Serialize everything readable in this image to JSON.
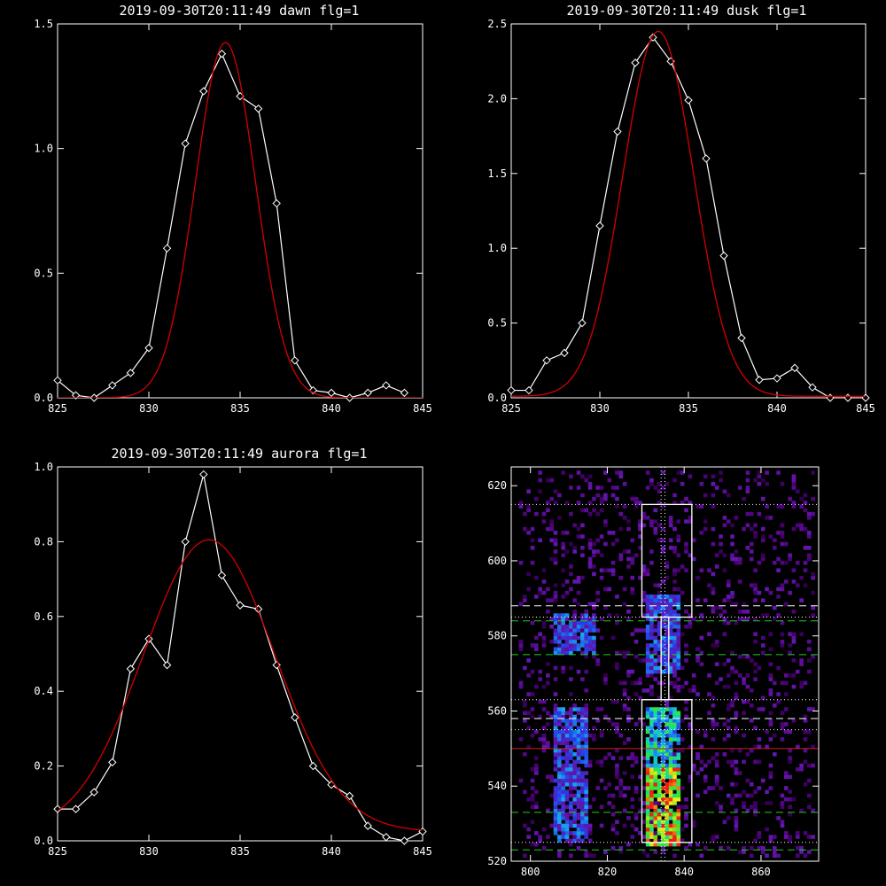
{
  "colors": {
    "background": "#000000",
    "axes": "#ffffff",
    "data_line": "#ffffff",
    "fit_line": "#d40000",
    "guide_green": "#22cc22",
    "guide_red": "#cc2222",
    "guide_white": "#ffffff"
  },
  "chart_data": [
    {
      "type": "line",
      "title": "2019-09-30T20:11:49 dawn flg=1",
      "xlim": [
        825,
        845
      ],
      "ylim": [
        0,
        1.5
      ],
      "xticks": [
        "825",
        "830",
        "835",
        "840",
        "845"
      ],
      "yticks": [
        "0.0",
        "0.5",
        "1.0",
        "1.5"
      ],
      "series": [
        {
          "style": "white-diamonds",
          "x": [
            825,
            826,
            827,
            828,
            829,
            830,
            831,
            832,
            833,
            834,
            835,
            836,
            837,
            838,
            839,
            840,
            841,
            842,
            843,
            844
          ],
          "y": [
            0.07,
            0.01,
            0.0,
            0.05,
            0.1,
            0.2,
            0.6,
            1.02,
            1.23,
            1.38,
            1.21,
            1.16,
            0.78,
            0.15,
            0.03,
            0.02,
            0.0,
            0.02,
            0.05,
            0.02
          ]
        },
        {
          "style": "red-fit",
          "gauss": {
            "amp": 1.425,
            "center": 834.2,
            "sigma": 1.65,
            "base": 0.0
          }
        }
      ]
    },
    {
      "type": "line",
      "title": "2019-09-30T20:11:49 dusk flg=1",
      "xlim": [
        825,
        845
      ],
      "ylim": [
        0,
        2.5
      ],
      "xticks": [
        "825",
        "830",
        "835",
        "840",
        "845"
      ],
      "yticks": [
        "0.0",
        "0.5",
        "1.0",
        "1.5",
        "2.0",
        "2.5"
      ],
      "series": [
        {
          "style": "white-diamonds",
          "x": [
            825,
            826,
            827,
            828,
            829,
            830,
            831,
            832,
            833,
            834,
            835,
            836,
            837,
            838,
            839,
            840,
            841,
            842,
            843,
            844,
            845
          ],
          "y": [
            0.05,
            0.05,
            0.25,
            0.3,
            0.5,
            1.15,
            1.78,
            2.24,
            2.41,
            2.25,
            1.99,
            1.6,
            0.95,
            0.4,
            0.12,
            0.13,
            0.2,
            0.07,
            0.0,
            0.0,
            0.0
          ]
        },
        {
          "style": "red-fit",
          "gauss": {
            "amp": 2.44,
            "center": 833.3,
            "sigma": 2.0,
            "base": 0.01
          }
        }
      ]
    },
    {
      "type": "line",
      "title": "2019-09-30T20:11:49 aurora flg=1",
      "xlim": [
        825,
        845
      ],
      "ylim": [
        0,
        1.0
      ],
      "xticks": [
        "825",
        "830",
        "835",
        "840",
        "845"
      ],
      "yticks": [
        "0.0",
        "0.2",
        "0.4",
        "0.6",
        "0.8",
        "1.0"
      ],
      "series": [
        {
          "style": "white-diamonds",
          "x": [
            825,
            826,
            827,
            828,
            829,
            830,
            831,
            832,
            833,
            834,
            835,
            836,
            837,
            838,
            839,
            840,
            841,
            842,
            843,
            844,
            845
          ],
          "y": [
            0.085,
            0.085,
            0.13,
            0.21,
            0.46,
            0.54,
            0.47,
            0.8,
            0.98,
            0.71,
            0.63,
            0.62,
            0.47,
            0.33,
            0.2,
            0.15,
            0.12,
            0.04,
            0.01,
            0.0,
            0.025
          ]
        },
        {
          "style": "red-fit",
          "gauss": {
            "amp": 0.78,
            "center": 833.3,
            "sigma": 3.6,
            "base": 0.025
          }
        }
      ]
    },
    {
      "type": "heatmap",
      "title": "",
      "xlim": [
        795,
        875
      ],
      "ylim": [
        520,
        625
      ],
      "xticks": [
        "800",
        "820",
        "840",
        "860"
      ],
      "yticks": [
        "520",
        "540",
        "560",
        "580",
        "600",
        "620"
      ],
      "colormap": "rainbow (black-purple-blue-cyan-green-yellow-red)",
      "bright_regions": [
        {
          "x": [
            830,
            838
          ],
          "y": [
            524,
            560
          ],
          "level": "high"
        },
        {
          "x": [
            806,
            814
          ],
          "y": [
            525,
            560
          ],
          "level": "medium"
        },
        {
          "x": [
            806,
            816
          ],
          "y": [
            575,
            585
          ],
          "level": "medium"
        },
        {
          "x": [
            830,
            838
          ],
          "y": [
            570,
            590
          ],
          "level": "medium"
        }
      ],
      "boxes": [
        {
          "x": [
            829,
            842
          ],
          "y": [
            525,
            563
          ]
        },
        {
          "x": [
            829,
            842
          ],
          "y": [
            585,
            615
          ]
        },
        {
          "x": [
            834,
            836
          ],
          "y": [
            563,
            585
          ]
        }
      ],
      "hlines": [
        {
          "y": 615,
          "color": "white",
          "style": "dotted"
        },
        {
          "y": 588,
          "color": "white",
          "style": "dashed"
        },
        {
          "y": 585,
          "color": "white",
          "style": "dotted"
        },
        {
          "y": 584,
          "color": "green",
          "style": "dashed"
        },
        {
          "y": 575,
          "color": "green",
          "style": "dashed"
        },
        {
          "y": 563,
          "color": "white",
          "style": "dotted"
        },
        {
          "y": 558,
          "color": "white",
          "style": "dashed"
        },
        {
          "y": 555,
          "color": "white",
          "style": "dotted"
        },
        {
          "y": 550,
          "color": "red",
          "style": "solid"
        },
        {
          "y": 533,
          "color": "green",
          "style": "dashed"
        },
        {
          "y": 525,
          "color": "white",
          "style": "dotted"
        },
        {
          "y": 523,
          "color": "green",
          "style": "dashed"
        }
      ],
      "vlines": [
        {
          "x": 834,
          "color": "white",
          "style": "dotted"
        },
        {
          "x": 835,
          "color": "white",
          "style": "dotted"
        }
      ]
    }
  ]
}
